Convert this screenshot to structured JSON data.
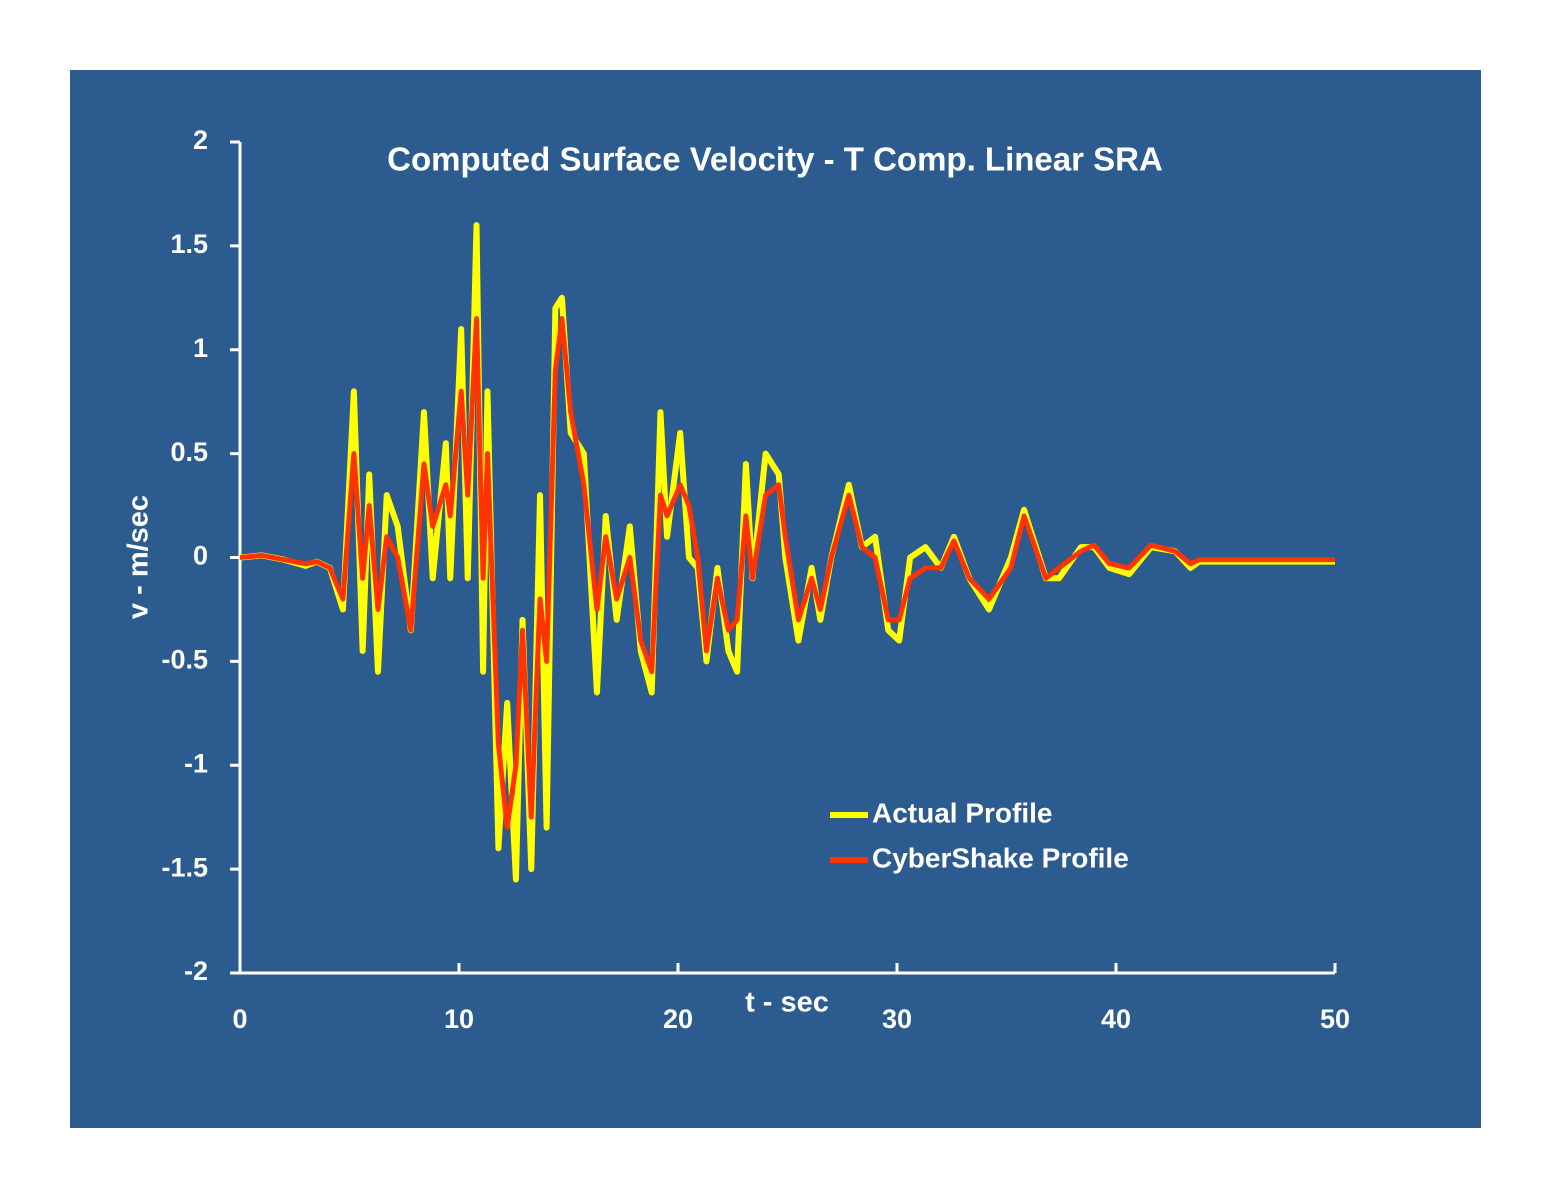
{
  "chart_data": {
    "type": "line",
    "title": "Computed Surface Velocity - T Comp. Linear SRA",
    "x_label": "t - sec",
    "y_label": "v - m/sec",
    "x": [
      0,
      1,
      2,
      3,
      3.5,
      4.1,
      4.7,
      5.2,
      5.6,
      5.9,
      6.3,
      6.7,
      7.2,
      7.8,
      8.4,
      8.8,
      9.4,
      9.6,
      10.1,
      10.4,
      10.8,
      11.1,
      11.3,
      11.8,
      12.2,
      12.6,
      12.9,
      13.3,
      13.7,
      14.0,
      14.4,
      14.7,
      15.1,
      15.7,
      16.3,
      16.7,
      17.2,
      17.8,
      18.3,
      18.8,
      19.2,
      19.5,
      20.1,
      20.5,
      20.9,
      21.3,
      21.8,
      22.3,
      22.7,
      23.1,
      23.4,
      24.0,
      24.6,
      24.9,
      25.5,
      26.1,
      26.5,
      27.0,
      27.8,
      28.4,
      29.0,
      29.6,
      30.1,
      30.6,
      31.3,
      32.0,
      32.6,
      33.3,
      34.2,
      35.2,
      35.8,
      36.8,
      37.4,
      38.4,
      39.0,
      39.7,
      40.6,
      41.6,
      42.7,
      43.4,
      43.8,
      50
    ],
    "series": [
      {
        "name": "Actual Profile",
        "color": "#ffff00",
        "values": [
          0,
          0.01,
          -0.01,
          -0.04,
          -0.02,
          -0.05,
          -0.25,
          0.8,
          -0.45,
          0.4,
          -0.55,
          0.3,
          0.15,
          -0.35,
          0.7,
          -0.1,
          0.55,
          -0.1,
          1.1,
          -0.1,
          1.6,
          -0.55,
          0.8,
          -1.4,
          -0.7,
          -1.55,
          -0.3,
          -1.5,
          0.3,
          -1.3,
          1.2,
          1.25,
          0.6,
          0.5,
          -0.65,
          0.2,
          -0.3,
          0.15,
          -0.45,
          -0.65,
          0.7,
          0.1,
          0.6,
          0,
          -0.05,
          -0.5,
          -0.05,
          -0.45,
          -0.55,
          0.45,
          -0.1,
          0.5,
          0.4,
          0,
          -0.4,
          -0.05,
          -0.3,
          0,
          0.35,
          0.05,
          0.1,
          -0.35,
          -0.4,
          0,
          0.05,
          -0.05,
          0.1,
          -0.1,
          -0.25,
          0,
          0.23,
          -0.1,
          -0.1,
          0.05,
          0.05,
          -0.05,
          -0.08,
          0.05,
          0.03,
          -0.05,
          -0.02,
          -0.02
        ]
      },
      {
        "name": "CyberShake Profile",
        "color": "#ff3300",
        "values": [
          0,
          0.01,
          -0.01,
          -0.03,
          -0.02,
          -0.05,
          -0.2,
          0.5,
          -0.1,
          0.25,
          -0.25,
          0.1,
          0,
          -0.35,
          0.45,
          0.15,
          0.35,
          0.2,
          0.8,
          0.3,
          1.15,
          -0.1,
          0.5,
          -0.9,
          -1.3,
          -1.0,
          -0.35,
          -1.25,
          -0.2,
          -0.5,
          0.9,
          1.15,
          0.7,
          0.35,
          -0.25,
          0.1,
          -0.2,
          0,
          -0.4,
          -0.55,
          0.3,
          0.2,
          0.35,
          0.25,
          0,
          -0.45,
          -0.1,
          -0.35,
          -0.3,
          0.2,
          -0.1,
          0.3,
          0.35,
          0.1,
          -0.3,
          -0.1,
          -0.25,
          0,
          0.3,
          0.05,
          0,
          -0.3,
          -0.3,
          -0.1,
          -0.05,
          -0.05,
          0.08,
          -0.1,
          -0.2,
          -0.05,
          0.2,
          -0.1,
          -0.05,
          0.03,
          0.06,
          -0.03,
          -0.05,
          0.06,
          0.03,
          -0.03,
          -0.01,
          -0.01
        ]
      }
    ],
    "xlim": [
      0,
      50
    ],
    "xticks": [
      0,
      10,
      20,
      30,
      40,
      50
    ],
    "ylim": [
      -2,
      2
    ],
    "yticks": [
      -2,
      -1.5,
      -1,
      -0.5,
      0,
      0.5,
      1,
      1.5,
      2
    ],
    "background": "#2b5b8f"
  }
}
